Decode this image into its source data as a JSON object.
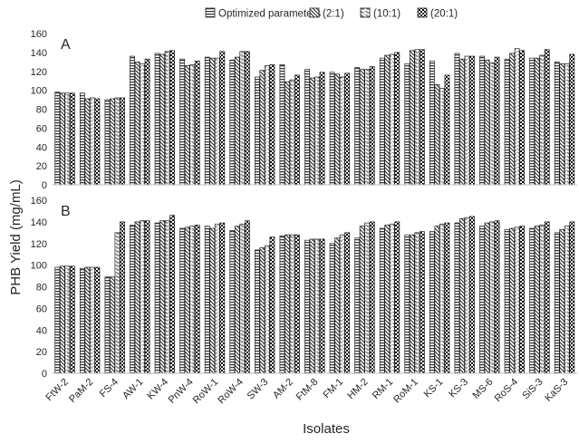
{
  "chart_data": {
    "type": "bar",
    "ylabel": "PHB Yield (mg/mL)",
    "xlabel": "Isolates",
    "ylim": [
      0,
      160
    ],
    "yticks": [
      0,
      20,
      40,
      60,
      80,
      100,
      120,
      140,
      160
    ],
    "grid": false,
    "legend_position": "top",
    "legend": [
      "Optimized parameters",
      "(2:1)",
      "(10:1)",
      "(20:1)"
    ],
    "categories": [
      "FtW-2",
      "PaM-2",
      "FS-4",
      "AW-1",
      "KW-4",
      "PnW-4",
      "RoW-1",
      "RoW-4",
      "SW-3",
      "AM-2",
      "FtM-8",
      "FM-1",
      "HM-2",
      "RM-1",
      "RoM-1",
      "KS-1",
      "KS-3",
      "MS-6",
      "RoS-4",
      "SiS-3",
      "KaS-3"
    ],
    "panels": [
      {
        "label": "A",
        "series": [
          {
            "name": "Optimized parameters",
            "values": [
              98,
              97,
              90,
              136,
              139,
              133,
              135,
              132,
              114,
              127,
              122,
              119,
              124,
              134,
              128,
              131,
              139,
              136,
              133,
              134,
              130
            ]
          },
          {
            "name": "(2:1)",
            "values": [
              97,
              91,
              91,
              130,
              138,
              126,
              134,
              135,
              121,
              109,
              113,
              117,
              122,
              137,
              142,
              106,
              133,
              132,
              139,
              134,
              128
            ]
          },
          {
            "name": "(10:1)",
            "values": [
              97,
              92,
              92,
              128,
              141,
              127,
              134,
              141,
              126,
              111,
              114,
              114,
              122,
              138,
              143,
              102,
              136,
              129,
              144,
              137,
              128
            ]
          },
          {
            "name": "(20:1)",
            "values": [
              97,
              91,
              92,
              133,
              142,
              131,
              141,
              141,
              127,
              116,
              119,
              118,
              125,
              140,
              143,
              116,
              136,
              135,
              142,
              143,
              138
            ]
          }
        ]
      },
      {
        "label": "B",
        "series": [
          {
            "name": "Optimized parameters",
            "values": [
              98,
              97,
              89,
              137,
              139,
              134,
              136,
              132,
              114,
              127,
              123,
              120,
              125,
              134,
              128,
              131,
              139,
              136,
              133,
              134,
              130
            ]
          },
          {
            "name": "(2:1)",
            "values": [
              99,
              98,
              89,
              140,
              141,
              135,
              134,
              136,
              116,
              128,
              124,
              125,
              136,
              137,
              128,
              136,
              143,
              139,
              134,
              136,
              133
            ]
          },
          {
            "name": "(10:1)",
            "values": [
              99,
              98,
              130,
              141,
              141,
              136,
              138,
              138,
              118,
              128,
              124,
              128,
              139,
              138,
              130,
              138,
              144,
              140,
              135,
              137,
              136
            ]
          },
          {
            "name": "(20:1)",
            "values": [
              99,
              98,
              140,
              141,
              146,
              137,
              139,
              141,
              126,
              128,
              124,
              130,
              140,
              140,
              131,
              139,
              145,
              141,
              136,
              140,
              140
            ]
          }
        ]
      }
    ]
  }
}
